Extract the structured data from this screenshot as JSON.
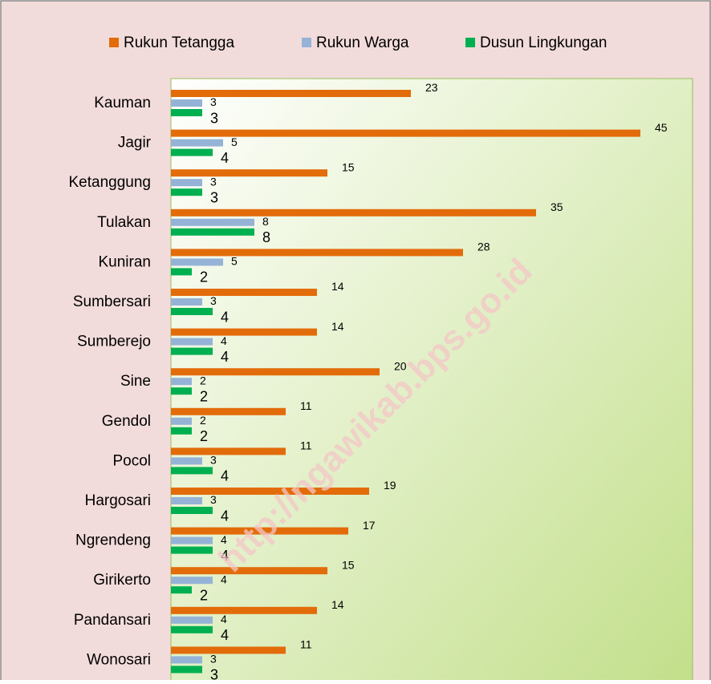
{
  "chart_data": {
    "type": "hbar",
    "categories": [
      "Kauman",
      "Jagir",
      "Ketanggung",
      "Tulakan",
      "Kuniran",
      "Sumbersari",
      "Sumberejo",
      "Sine",
      "Gendol",
      "Pocol",
      "Hargosari",
      "Ngrendeng",
      "Girikerto",
      "Pandansari",
      "Wonosari"
    ],
    "series": [
      {
        "name": "Rukun Tetangga",
        "color": "#e36c0a",
        "values": [
          23,
          45,
          15,
          35,
          28,
          14,
          14,
          20,
          11,
          11,
          19,
          17,
          15,
          14,
          11
        ]
      },
      {
        "name": "Rukun Warga",
        "color": "#95b3d7",
        "values": [
          3,
          5,
          3,
          8,
          5,
          3,
          4,
          2,
          2,
          3,
          3,
          4,
          4,
          4,
          3
        ]
      },
      {
        "name": "Dusun Lingkungan",
        "color": "#00b050",
        "values": [
          3,
          4,
          3,
          8,
          2,
          4,
          4,
          2,
          2,
          4,
          4,
          4,
          2,
          4,
          3
        ]
      }
    ],
    "xlim": [
      0,
      50
    ],
    "legend": "top",
    "watermark": "http://ngawikab.bps.go.id"
  }
}
